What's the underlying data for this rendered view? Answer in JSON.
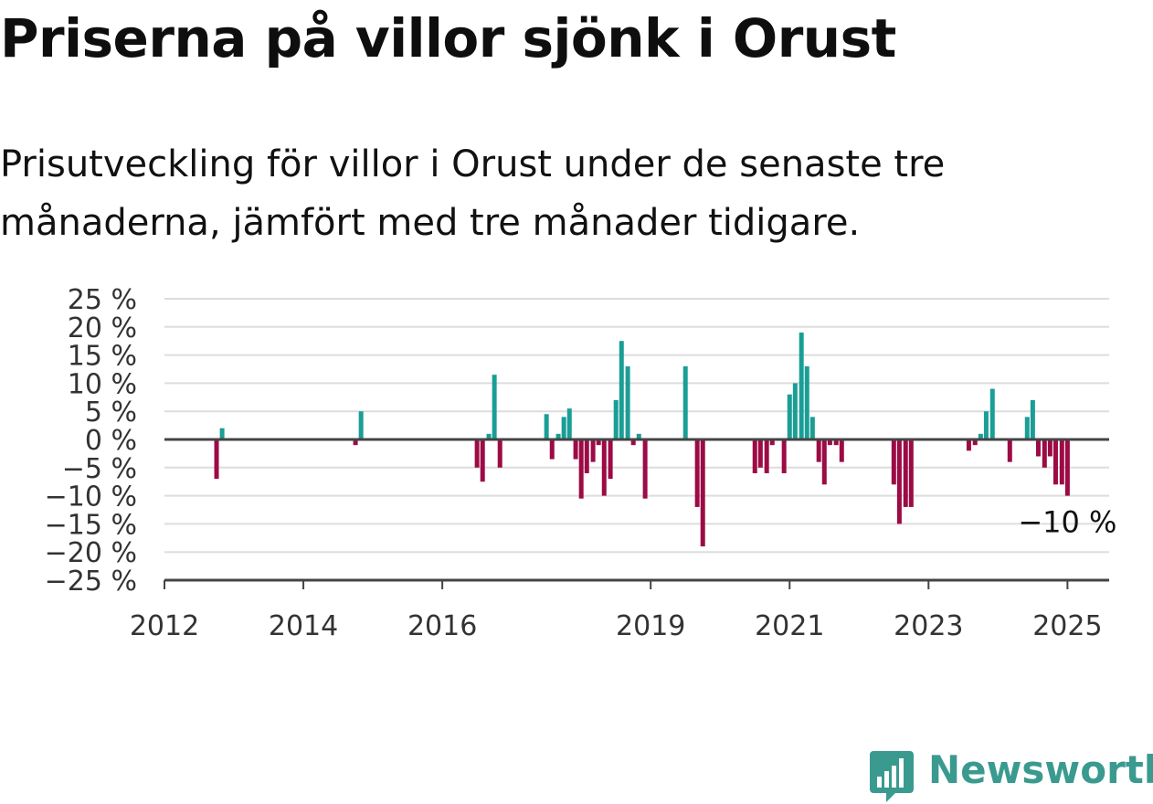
{
  "title": "Priserna på villor sjönk i Orust",
  "subtitle": "Prisutveckling för villor i Orust under de senaste tre månaderna, jämfört med tre månader tidigare.",
  "brand": {
    "name": "Newsworthy",
    "icon": "newsworthy-logo-icon"
  },
  "colors": {
    "positive": "#1a9e96",
    "negative": "#9c0b45",
    "grid": "#dddddd",
    "axis": "#444444",
    "text": "#333333"
  },
  "chart_data": {
    "type": "bar",
    "title": "Priserna på villor sjönk i Orust",
    "subtitle": "Prisutveckling för villor i Orust under de senaste tre månaderna, jämfört med tre månader tidigare.",
    "xlabel": "",
    "ylabel": "",
    "x_unit": "year (decimal)",
    "xlim": [
      2012,
      2025.6
    ],
    "ylim": [
      -25,
      25
    ],
    "yticks": [
      25,
      20,
      15,
      10,
      5,
      0,
      -5,
      -10,
      -15,
      -20,
      -25
    ],
    "ytick_labels": [
      "25 %",
      "20 %",
      "15 %",
      "10 %",
      "5 %",
      "0 %",
      "−5 %",
      "−10 %",
      "−15 %",
      "−20 %",
      "−25 %"
    ],
    "xticks": [
      2012,
      2014,
      2016,
      2019,
      2021,
      2023,
      2025
    ],
    "xtick_labels": [
      "2012",
      "2014",
      "2016",
      "2019",
      "2021",
      "2023",
      "2025"
    ],
    "grid": true,
    "annotation": {
      "text": "−10 %",
      "x": 2025.0,
      "y": -14.5
    },
    "series": [
      {
        "values": [
          {
            "x": 2012.75,
            "y": -7
          },
          {
            "x": 2012.83,
            "y": 2
          },
          {
            "x": 2014.75,
            "y": -1
          },
          {
            "x": 2014.83,
            "y": 5
          },
          {
            "x": 2016.5,
            "y": -5
          },
          {
            "x": 2016.58,
            "y": -7.5
          },
          {
            "x": 2016.67,
            "y": 1
          },
          {
            "x": 2016.75,
            "y": 11.5
          },
          {
            "x": 2016.83,
            "y": -5
          },
          {
            "x": 2017.5,
            "y": 4.5
          },
          {
            "x": 2017.58,
            "y": -3.5
          },
          {
            "x": 2017.67,
            "y": 1
          },
          {
            "x": 2017.75,
            "y": 4
          },
          {
            "x": 2017.83,
            "y": 5.5
          },
          {
            "x": 2017.92,
            "y": -3.5
          },
          {
            "x": 2018.0,
            "y": -10.5
          },
          {
            "x": 2018.08,
            "y": -6
          },
          {
            "x": 2018.17,
            "y": -4
          },
          {
            "x": 2018.25,
            "y": -1
          },
          {
            "x": 2018.33,
            "y": -10
          },
          {
            "x": 2018.42,
            "y": -7
          },
          {
            "x": 2018.5,
            "y": 7
          },
          {
            "x": 2018.58,
            "y": 17.5
          },
          {
            "x": 2018.67,
            "y": 13
          },
          {
            "x": 2018.75,
            "y": -1
          },
          {
            "x": 2018.83,
            "y": 1
          },
          {
            "x": 2018.92,
            "y": -10.5
          },
          {
            "x": 2019.5,
            "y": 13
          },
          {
            "x": 2019.67,
            "y": -12
          },
          {
            "x": 2019.75,
            "y": -19
          },
          {
            "x": 2020.5,
            "y": -6
          },
          {
            "x": 2020.58,
            "y": -5
          },
          {
            "x": 2020.67,
            "y": -6
          },
          {
            "x": 2020.75,
            "y": -1
          },
          {
            "x": 2020.92,
            "y": -6
          },
          {
            "x": 2021.0,
            "y": 8
          },
          {
            "x": 2021.08,
            "y": 10
          },
          {
            "x": 2021.17,
            "y": 19
          },
          {
            "x": 2021.25,
            "y": 13
          },
          {
            "x": 2021.33,
            "y": 4
          },
          {
            "x": 2021.42,
            "y": -4
          },
          {
            "x": 2021.5,
            "y": -8
          },
          {
            "x": 2021.58,
            "y": -1
          },
          {
            "x": 2021.67,
            "y": -1
          },
          {
            "x": 2021.75,
            "y": -4
          },
          {
            "x": 2022.5,
            "y": -8
          },
          {
            "x": 2022.58,
            "y": -15
          },
          {
            "x": 2022.67,
            "y": -12
          },
          {
            "x": 2022.75,
            "y": -12
          },
          {
            "x": 2023.58,
            "y": -2
          },
          {
            "x": 2023.67,
            "y": -1
          },
          {
            "x": 2023.75,
            "y": 1
          },
          {
            "x": 2023.83,
            "y": 5
          },
          {
            "x": 2023.92,
            "y": 9
          },
          {
            "x": 2024.17,
            "y": -4
          },
          {
            "x": 2024.42,
            "y": 4
          },
          {
            "x": 2024.5,
            "y": 7
          },
          {
            "x": 2024.58,
            "y": -3
          },
          {
            "x": 2024.67,
            "y": -5
          },
          {
            "x": 2024.75,
            "y": -3
          },
          {
            "x": 2024.83,
            "y": -8
          },
          {
            "x": 2024.92,
            "y": -8
          },
          {
            "x": 2025.0,
            "y": -10
          }
        ]
      }
    ]
  }
}
